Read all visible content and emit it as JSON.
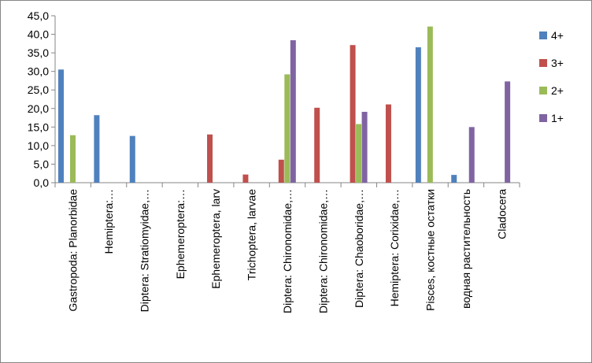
{
  "chart_data": {
    "type": "bar",
    "ylim": [
      0,
      45
    ],
    "ytick_step": 5,
    "ytick_labels": [
      "0,0",
      "5,0",
      "10,0",
      "15,0",
      "20,0",
      "25,0",
      "30,0",
      "35,0",
      "40,0",
      "45,0"
    ],
    "grid": false,
    "legend_position": "right",
    "categories": [
      "Gastropoda: Planorbidae",
      "Hemiptera:…",
      "Diptera: Stratiomyidae,…",
      "Ephemeroptera:…",
      "Ephemeroptera, larv",
      "Trichoptera, larvae",
      "Diptera: Chironomidae,…",
      "Diptera: Chironomidae,…",
      "Diptera: Chaoboridae,…",
      "Hemiptera: Corixidae,…",
      "Pisces, костные остатки",
      "водная растительность",
      "Cladocera"
    ],
    "series": [
      {
        "name": "4+",
        "color": "#4F81BD",
        "values": [
          30.5,
          18.2,
          12.6,
          0,
          0,
          0,
          0,
          0,
          0,
          0,
          36.5,
          2.1,
          0
        ]
      },
      {
        "name": "3+",
        "color": "#C0504D",
        "values": [
          0,
          0,
          0,
          0,
          13.0,
          2.2,
          6.2,
          20.2,
          37.1,
          21.1,
          0,
          0,
          0
        ]
      },
      {
        "name": "2+",
        "color": "#9BBB59",
        "values": [
          12.8,
          0,
          0,
          0,
          0,
          0,
          29.2,
          0,
          15.8,
          0,
          42.1,
          0,
          0
        ]
      },
      {
        "name": "1+",
        "color": "#8064A2",
        "values": [
          0,
          0,
          0,
          0,
          0,
          0,
          38.4,
          0,
          19.1,
          0,
          0,
          15.0,
          27.3
        ]
      }
    ]
  }
}
